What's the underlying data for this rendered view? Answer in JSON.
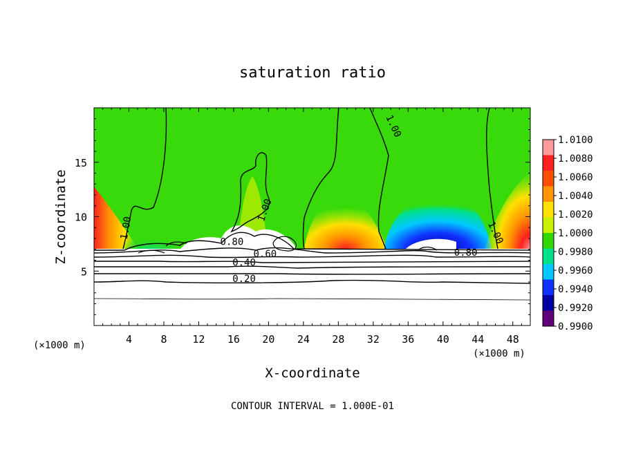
{
  "chart_data": {
    "type": "heatmap",
    "title": "saturation ratio",
    "xlabel": "X-coordinate",
    "ylabel": "Z-coordinate",
    "x_unit_left": "(×1000 m)",
    "x_unit_right": "(×1000 m)",
    "xlim": [
      0,
      50
    ],
    "ylim": [
      0,
      20
    ],
    "x_ticks": [
      4,
      8,
      12,
      16,
      20,
      24,
      28,
      32,
      36,
      40,
      44,
      48
    ],
    "y_ticks": [
      5,
      10,
      15
    ],
    "footer": "CONTOUR INTERVAL = 1.000E-01",
    "colorbar": {
      "levels": [
        "1.0100",
        "1.0080",
        "1.0060",
        "1.0040",
        "1.0020",
        "1.0000",
        "0.9980",
        "0.9960",
        "0.9940",
        "0.9920",
        "0.9900"
      ],
      "colors": [
        "#ff9a9a",
        "#ff2020",
        "#ff5000",
        "#ff9400",
        "#ffe000",
        "#c8f000",
        "#30d800",
        "#00e08a",
        "#00c8ff",
        "#1030ff",
        "#0000a0",
        "#60007a"
      ]
    },
    "contour_labels": [
      {
        "text": "1.00",
        "x": 4.0,
        "z": 8.9,
        "angle": -80
      },
      {
        "text": "1.00",
        "x": 19.9,
        "z": 10.5,
        "angle": -70
      },
      {
        "text": "1.00",
        "x": 34.0,
        "z": 18.2,
        "angle": 65
      },
      {
        "text": "1.00",
        "x": 45.7,
        "z": 8.4,
        "angle": 65
      },
      {
        "text": "0.80",
        "x": 15.8,
        "z": 7.4,
        "angle": 0
      },
      {
        "text": "0.60",
        "x": 19.6,
        "z": 6.3,
        "angle": 0
      },
      {
        "text": "0.80",
        "x": 42.6,
        "z": 6.4,
        "angle": 0
      },
      {
        "text": "0.40",
        "x": 17.2,
        "z": 5.5,
        "angle": 0
      },
      {
        "text": "0.20",
        "x": 17.2,
        "z": 4.0,
        "angle": 0
      }
    ]
  }
}
